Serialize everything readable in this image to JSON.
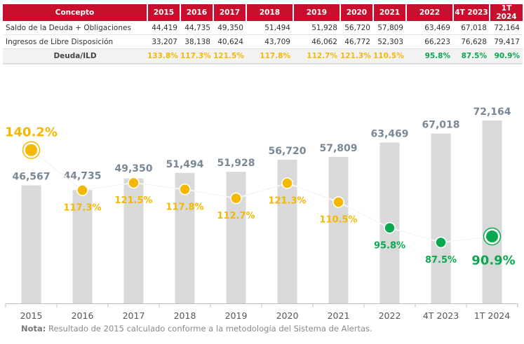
{
  "table": {
    "headers": [
      "Concepto",
      "2015",
      "2016",
      "2017",
      "2018",
      "2019",
      "2020",
      "2021",
      "2022",
      "4T 2023",
      "1T 2024"
    ],
    "rows": [
      {
        "label": "Saldo de la Deuda + Obligaciones",
        "values": [
          "44,419",
          "44,735",
          "49,350",
          "51,494",
          "51,928",
          "56,720",
          "57,809",
          "63,469",
          "67,018",
          "72,164"
        ]
      },
      {
        "label": "Ingresos de Libre Disposición",
        "values": [
          "33,207",
          "38,138",
          "40,624",
          "43,709",
          "46,062",
          "46,772",
          "52,303",
          "66,223",
          "76,628",
          "79,417"
        ]
      }
    ],
    "ratio_row": {
      "label": "Deuda/ILD",
      "values": [
        "133.8%",
        "117.3%",
        "121.5%",
        "117.8%",
        "112.7%",
        "121.3%",
        "110.5%",
        "95.8%",
        "87.5%",
        "90.9%"
      ]
    }
  },
  "chart_data": {
    "type": "bar",
    "categories": [
      "2015",
      "2016",
      "2017",
      "2018",
      "2019",
      "2020",
      "2021",
      "2022",
      "4T 2023",
      "1T 2024"
    ],
    "series": [
      {
        "values": [
          46567,
          44735,
          49350,
          51494,
          51928,
          56720,
          57809,
          63469,
          67018,
          72164
        ],
        "labels": [
          "46,567",
          "44,735",
          "49,350",
          "51,494",
          "51,928",
          "56,720",
          "57,809",
          "63,469",
          "67,018",
          "72,164"
        ]
      },
      {
        "type": "line",
        "values": [
          140.2,
          117.3,
          121.5,
          117.8,
          112.7,
          121.3,
          110.5,
          95.8,
          87.5,
          90.9
        ],
        "labels": [
          "140.2%",
          "117.3%",
          "121.5%",
          "117.8%",
          "112.7%",
          "121.3%",
          "110.5%",
          "95.8%",
          "87.5%",
          "90.9%"
        ]
      }
    ],
    "title": "",
    "xlabel": "",
    "ylabel": "",
    "grid": false,
    "colors": {
      "bar": "#d9d9d9",
      "ratio_high": "#f5b800",
      "ratio_low": "#0aa84f",
      "bar_label": "#7a8896",
      "line": "#ffffff",
      "axis": "#bfbfbf",
      "header_bg": "#c8102e"
    }
  },
  "note": {
    "bold": "Nota:",
    "text": " Resultado de 2015 calculado conforme a la metodología del Sistema de Alertas."
  }
}
